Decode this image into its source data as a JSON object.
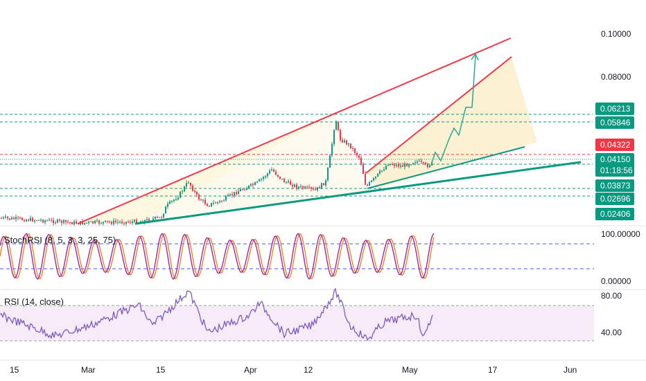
{
  "chart_data": {
    "type": "line",
    "price_axis": {
      "ticks": [
        "0.10000",
        "0.08000"
      ],
      "tags": [
        {
          "label": "0.06213",
          "color": "#089981"
        },
        {
          "label": "0.05846",
          "color": "#089981"
        },
        {
          "label": "0.04322",
          "color": "#f23645"
        },
        {
          "label": "0.04150",
          "color": "#089981"
        },
        {
          "label": "01:18:56",
          "color": "#089981"
        },
        {
          "label": "0.03873",
          "color": "#089981"
        },
        {
          "label": "0.02696",
          "color": "#089981"
        },
        {
          "label": "0.02406",
          "color": "#089981"
        }
      ]
    },
    "time_axis": [
      "15",
      "Mar",
      "15",
      "Apr",
      "12",
      "May",
      "17",
      "Jun"
    ],
    "stochrsi": {
      "label": "StochRSI (8, 5, 3, 3, 25, 75)",
      "ticks": [
        "100.00000",
        "0.00000"
      ]
    },
    "rsi": {
      "label": "RSI (14, close)",
      "ticks": [
        "80.00",
        "40.00"
      ]
    },
    "colors": {
      "up": "#089981",
      "down": "#f23645",
      "trendline_red": "#f23645",
      "trendline_green": "#089981",
      "wedge_fill": "#fff8e1",
      "projection_fill": "#fdf0cf",
      "projection_arrow": "#22ab94",
      "stoch_k": "#2962ff",
      "stoch_d": "#ff6d00",
      "rsi_line": "#7e57c2",
      "rsi_band": "#f3e5f5",
      "band_line": "#2962ff"
    }
  }
}
